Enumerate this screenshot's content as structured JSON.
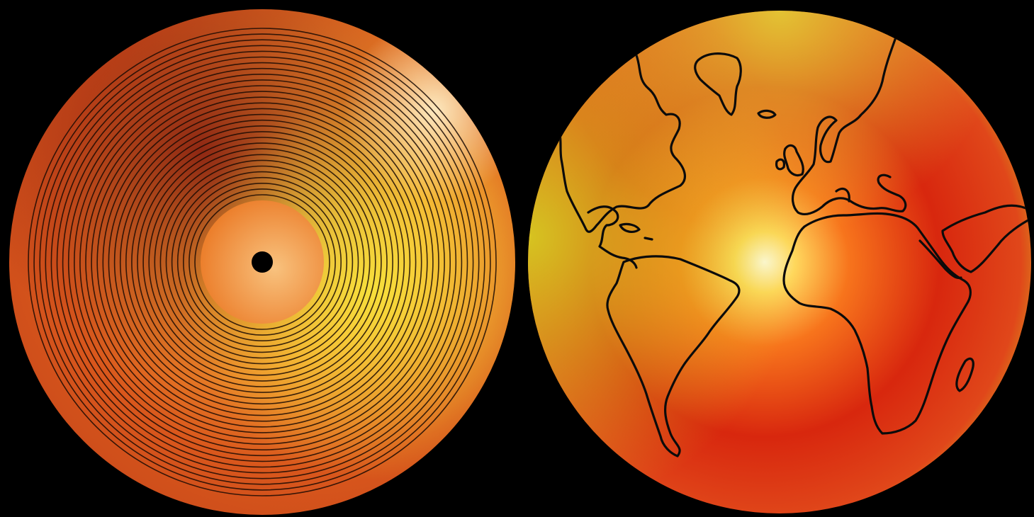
{
  "scene": {
    "background_color": "#000000",
    "subjects": [
      "vinyl-record",
      "globe"
    ]
  },
  "record": {
    "groove_count": 30,
    "groove_color": "#1a0a04",
    "label_color": "#f39a3c",
    "spindle_hole_color": "#000000",
    "palette": [
      "#f7e23a",
      "#f5a52a",
      "#e2541b",
      "#8a1c0f"
    ]
  },
  "globe": {
    "outline_color": "#0b0b0b",
    "palette": [
      "#fffbe0",
      "#ffd25a",
      "#f25f1a",
      "#d2240f",
      "#c9d21e"
    ],
    "landmasses": [
      "north-america",
      "south-america",
      "greenland",
      "iceland",
      "british-isles",
      "europe",
      "africa",
      "caribbean",
      "madagascar",
      "arabia"
    ]
  }
}
